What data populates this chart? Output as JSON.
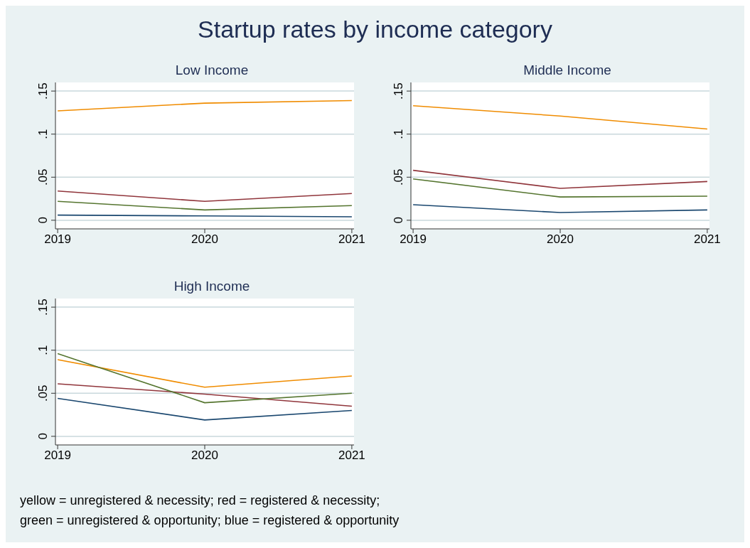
{
  "chart_data": [
    {
      "type": "line",
      "title": "Startup rates by income category",
      "subtitle": "Low Income",
      "x": [
        2019,
        2020,
        2021
      ],
      "xlim": [
        2018.985,
        2021.015
      ],
      "xticks": [
        2019,
        2020,
        2021
      ],
      "ylim": [
        -0.01,
        0.16
      ],
      "yticks": [
        {
          "value": 0,
          "label": "0"
        },
        {
          "value": 0.05,
          "label": ".05"
        },
        {
          "value": 0.1,
          "label": ".1"
        },
        {
          "value": 0.15,
          "label": ".15"
        }
      ],
      "grid": "y",
      "legend": false,
      "marker": "none",
      "line_style": "solid",
      "series": [
        {
          "color": "#f08c00",
          "values": [
            0.127,
            0.136,
            0.139
          ]
        },
        {
          "color": "#90353b",
          "values": [
            0.034,
            0.022,
            0.031
          ]
        },
        {
          "color": "#55752f",
          "values": [
            0.022,
            0.012,
            0.017
          ]
        },
        {
          "color": "#1a476f",
          "values": [
            0.006,
            0.005,
            0.004
          ]
        }
      ],
      "annotations": [
        "yellow = unregistered & necessity; red = registered & necessity;",
        "green = unregistered & opportunity; blue = registered & opportunity"
      ]
    },
    {
      "type": "line",
      "subtitle": "Middle Income",
      "x": [
        2019,
        2020,
        2021
      ],
      "xlim": [
        2018.985,
        2021.015
      ],
      "xticks": [
        2019,
        2020,
        2021
      ],
      "ylim": [
        -0.01,
        0.16
      ],
      "yticks": [
        {
          "value": 0,
          "label": "0"
        },
        {
          "value": 0.05,
          "label": ".05"
        },
        {
          "value": 0.1,
          "label": ".1"
        },
        {
          "value": 0.15,
          "label": ".15"
        }
      ],
      "grid": "y",
      "legend": false,
      "marker": "none",
      "line_style": "solid",
      "series": [
        {
          "color": "#f08c00",
          "values": [
            0.133,
            0.121,
            0.106
          ]
        },
        {
          "color": "#90353b",
          "values": [
            0.058,
            0.037,
            0.045
          ]
        },
        {
          "color": "#55752f",
          "values": [
            0.048,
            0.027,
            0.028
          ]
        },
        {
          "color": "#1a476f",
          "values": [
            0.018,
            0.009,
            0.012
          ]
        }
      ]
    },
    {
      "type": "line",
      "subtitle": "High Income",
      "x": [
        2019,
        2020,
        2021
      ],
      "xlim": [
        2018.985,
        2021.015
      ],
      "xticks": [
        2019,
        2020,
        2021
      ],
      "ylim": [
        -0.01,
        0.16
      ],
      "yticks": [
        {
          "value": 0,
          "label": "0"
        },
        {
          "value": 0.05,
          "label": ".05"
        },
        {
          "value": 0.1,
          "label": ".1"
        },
        {
          "value": 0.15,
          "label": ".15"
        }
      ],
      "grid": "y",
      "legend": false,
      "marker": "none",
      "line_style": "solid",
      "series": [
        {
          "color": "#f08c00",
          "values": [
            0.089,
            0.057,
            0.07
          ]
        },
        {
          "color": "#90353b",
          "values": [
            0.061,
            0.049,
            0.035
          ]
        },
        {
          "color": "#55752f",
          "values": [
            0.096,
            0.039,
            0.05
          ]
        },
        {
          "color": "#1a476f",
          "values": [
            0.044,
            0.019,
            0.03
          ]
        }
      ]
    }
  ]
}
